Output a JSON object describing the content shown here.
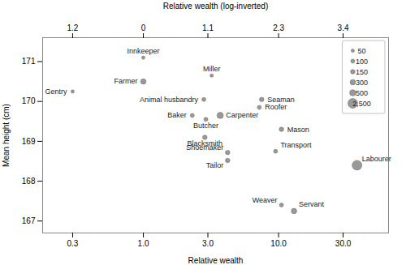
{
  "chart_data": {
    "type": "scatter",
    "xlabel": "Relative wealth",
    "x2label": "Relative wealth (log-inverted)",
    "ylabel": "Mean height (cm)",
    "labels": [
      "Gentry",
      "Innkeeper",
      "Farmer",
      "Animal husbandry",
      "Miller",
      "Baker",
      "Butcher",
      "Carpenter",
      "Blacksmith",
      "Seaman",
      "Roofer",
      "Mason",
      "Shoemaker",
      "Tailor",
      "Transport",
      "Weaver",
      "Servant",
      "Labourer"
    ],
    "x": [
      0.3,
      1.0,
      1.0,
      2.8,
      3.2,
      2.3,
      2.9,
      3.7,
      2.85,
      7.5,
      7.2,
      10.5,
      4.2,
      4.2,
      9.5,
      10.5,
      13.0,
      38.0
    ],
    "y": [
      170.25,
      171.1,
      170.5,
      170.05,
      170.65,
      169.65,
      169.55,
      169.65,
      169.1,
      170.05,
      169.85,
      169.3,
      168.72,
      168.52,
      168.75,
      167.4,
      167.25,
      168.4
    ],
    "sizes": [
      50,
      50,
      300,
      100,
      50,
      100,
      100,
      500,
      150,
      150,
      100,
      150,
      150,
      150,
      100,
      100,
      300,
      2500
    ],
    "size_legend": [
      50,
      100,
      150,
      300,
      500,
      {
        "value": 2500,
        "label": "2,500"
      }
    ],
    "color": "#999999",
    "log": "x",
    "xlim": [
      0.18,
      65
    ],
    "ylim": [
      166.7,
      171.6
    ],
    "xticks": [
      0.3,
      {
        "value": 1.0,
        "label": "1.0"
      },
      {
        "value": 3.0,
        "label": "3.0"
      },
      {
        "value": 10.0,
        "label": "10.0"
      },
      {
        "value": 30.0,
        "label": "30.0"
      }
    ],
    "x2ticks": [
      {
        "value": 0.3,
        "label": "1.2"
      },
      {
        "value": 1.0,
        "label": "0"
      },
      {
        "value": 3.0,
        "label": "1.1"
      },
      {
        "value": 10.0,
        "label": "2.3"
      },
      {
        "value": 30.0,
        "label": "3.4"
      }
    ],
    "yticks": [
      167,
      168,
      169,
      170,
      171
    ],
    "legend": "upper right"
  }
}
